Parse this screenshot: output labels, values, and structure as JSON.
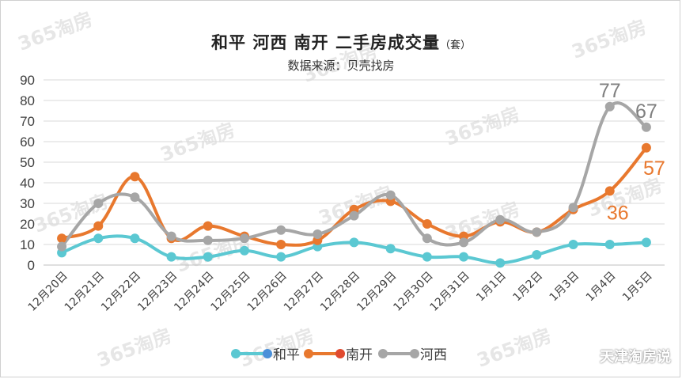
{
  "title": "和平 河西 南开 二手房成交量",
  "title_unit": "（套）",
  "subtitle": "数据来源：贝壳找房",
  "watermark": "365淘房",
  "brand": "天津淘房说",
  "chart_data": {
    "type": "line",
    "categories": [
      "12月20日",
      "12月21日",
      "12月22日",
      "12月23日",
      "12月24日",
      "12月25日",
      "12月26日",
      "12月27日",
      "12月28日",
      "12月29日",
      "12月30日",
      "12月31日",
      "1月1日",
      "1月2日",
      "1月3日",
      "1月4日",
      "1月5日"
    ],
    "y_ticks": [
      0,
      10,
      20,
      30,
      40,
      50,
      60,
      70,
      80,
      90
    ],
    "ylim": [
      0,
      90
    ],
    "grid": true,
    "legend_position": "bottom",
    "series": [
      {
        "name": "和平",
        "color": "#5bc8d2",
        "marker_color": "#4a90d9",
        "values": [
          6,
          13,
          13,
          4,
          4,
          7,
          4,
          9,
          11,
          8,
          4,
          4,
          1,
          5,
          10,
          10,
          11
        ]
      },
      {
        "name": "南开",
        "color": "#e8782e",
        "marker_color": "#e04a2f",
        "values": [
          13,
          19,
          43,
          13,
          19,
          14,
          10,
          12,
          27,
          31,
          20,
          14,
          21,
          16,
          27,
          36,
          57
        ]
      },
      {
        "name": "河西",
        "color": "#a6a6a6",
        "marker_color": "#a6a6a6",
        "values": [
          9,
          30,
          33,
          14,
          12,
          13,
          17,
          15,
          24,
          34,
          13,
          11,
          22,
          16,
          28,
          77,
          67
        ]
      }
    ],
    "annotations": [
      {
        "series": "河西",
        "index": 15,
        "text": "77",
        "color": "#7f7f7f"
      },
      {
        "series": "河西",
        "index": 16,
        "text": "67",
        "color": "#7f7f7f"
      },
      {
        "series": "南开",
        "index": 15,
        "text": "36",
        "color": "#e8782e"
      },
      {
        "series": "南开",
        "index": 16,
        "text": "57",
        "color": "#e8782e"
      }
    ]
  }
}
